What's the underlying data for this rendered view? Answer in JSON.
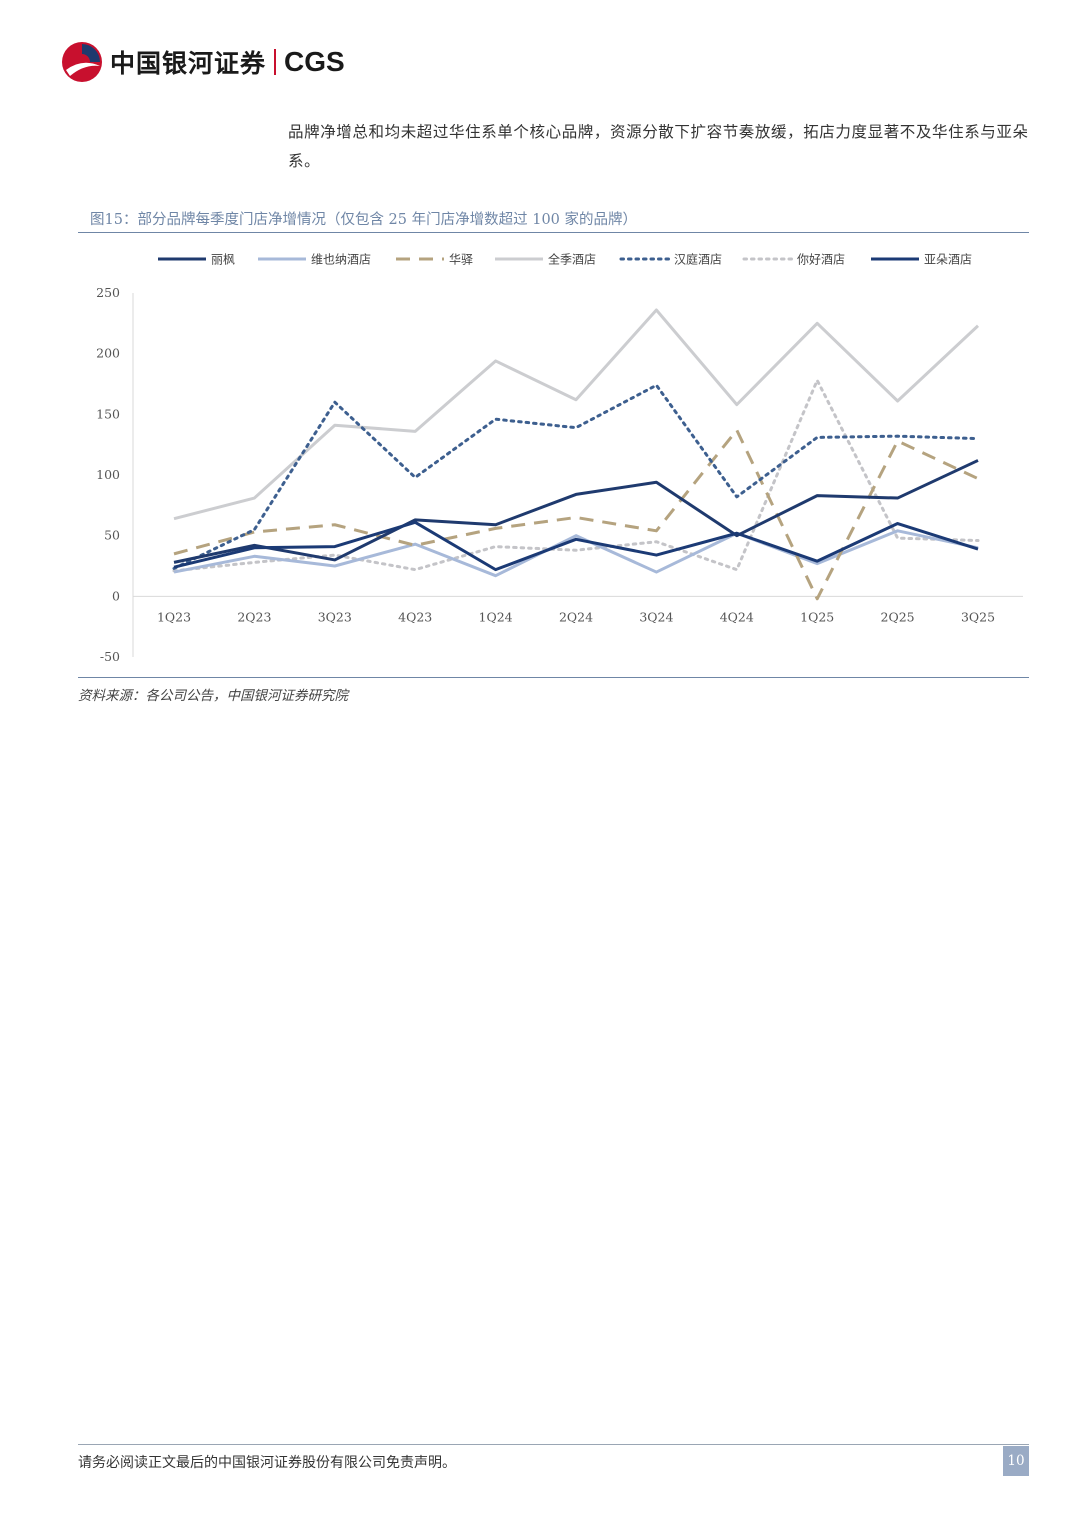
{
  "header": {
    "brand_cn": "中国银河证券",
    "brand_en": "CGS"
  },
  "body_text": "品牌净增总和均未超过华住系单个核心品牌，资源分散下扩容节奏放缓，拓店力度显著不及华住系与亚朵系。",
  "figure": {
    "title": "图15：部分品牌每季度门店净增情况（仅包含 25 年门店净增数超过 100 家的品牌）",
    "source": "资料来源：各公司公告，中国银河证券研究院"
  },
  "footer": {
    "disclaimer": "请务必阅读正文最后的中国银河证券股份有限公司免责声明。",
    "page": "10"
  },
  "chart_data": {
    "type": "line",
    "title": "",
    "xlabel": "",
    "ylabel": "",
    "categories": [
      "1Q23",
      "2Q23",
      "3Q23",
      "4Q23",
      "1Q24",
      "2Q24",
      "3Q24",
      "4Q24",
      "1Q25",
      "2Q25",
      "3Q25"
    ],
    "ylim": [
      -50,
      250
    ],
    "yticks": [
      "250",
      "200",
      "150",
      "100",
      "50",
      "0",
      "-50"
    ],
    "legend_position": "top",
    "series": [
      {
        "name": "丽枫",
        "color": "#1f3a6e",
        "style": "solid",
        "values": [
          28,
          42,
          30,
          63,
          59,
          84,
          94,
          50,
          83,
          81,
          112
        ]
      },
      {
        "name": "维也纳酒店",
        "color": "#a7b9d9",
        "style": "solid",
        "values": [
          20,
          33,
          25,
          43,
          17,
          50,
          20,
          52,
          27,
          54,
          40
        ]
      },
      {
        "name": "华驿",
        "color": "#b5a37f",
        "style": "dashed",
        "values": [
          35,
          53,
          59,
          42,
          56,
          65,
          54,
          137,
          -2,
          128,
          97
        ]
      },
      {
        "name": "全季酒店",
        "color": "#cccdd0",
        "style": "solid",
        "values": [
          64,
          81,
          141,
          136,
          194,
          162,
          236,
          158,
          225,
          161,
          223
        ]
      },
      {
        "name": "汉庭酒店",
        "color": "#3d5f8f",
        "style": "dotted",
        "values": [
          23,
          55,
          160,
          98,
          146,
          139,
          174,
          82,
          131,
          132,
          130
        ]
      },
      {
        "name": "你好酒店",
        "color": "#c4c4c8",
        "style": "dotted",
        "values": [
          21,
          28,
          34,
          22,
          41,
          38,
          45,
          22,
          178,
          48,
          46
        ]
      },
      {
        "name": "亚朵酒店",
        "color": "#1b3a75",
        "style": "solid",
        "values": [
          24,
          40,
          41,
          61,
          22,
          47,
          34,
          52,
          29,
          60,
          39
        ]
      }
    ]
  }
}
